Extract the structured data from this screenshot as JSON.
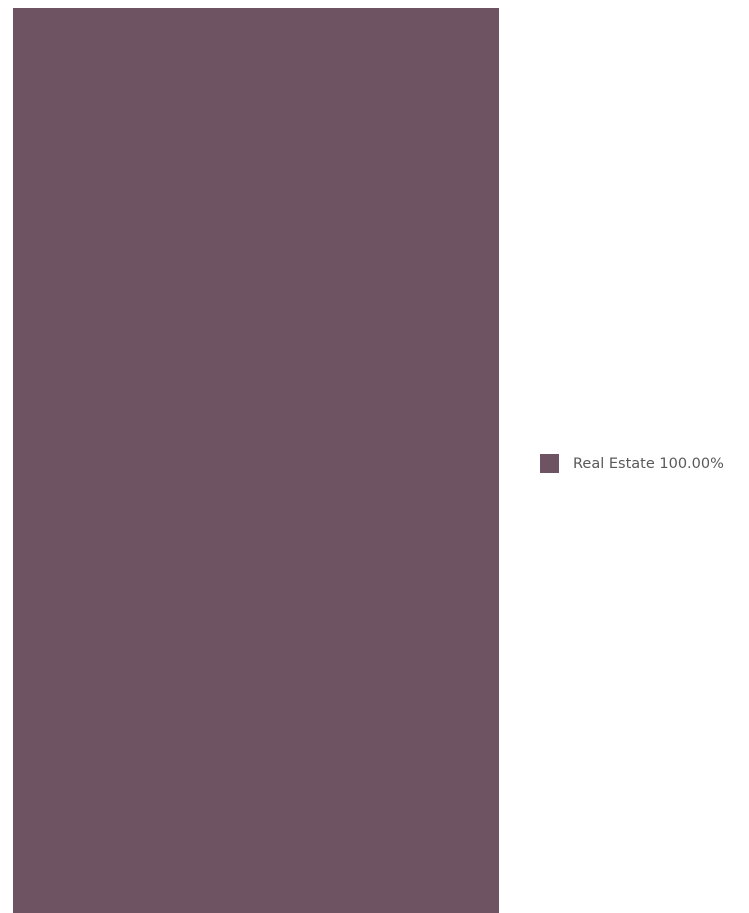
{
  "chart_data": {
    "type": "treemap",
    "title": "",
    "series": [
      {
        "name": "Real Estate",
        "value": 100.0,
        "label": "Real Estate 100.00%",
        "color": "#6e5463"
      }
    ],
    "legend_position": "right"
  }
}
